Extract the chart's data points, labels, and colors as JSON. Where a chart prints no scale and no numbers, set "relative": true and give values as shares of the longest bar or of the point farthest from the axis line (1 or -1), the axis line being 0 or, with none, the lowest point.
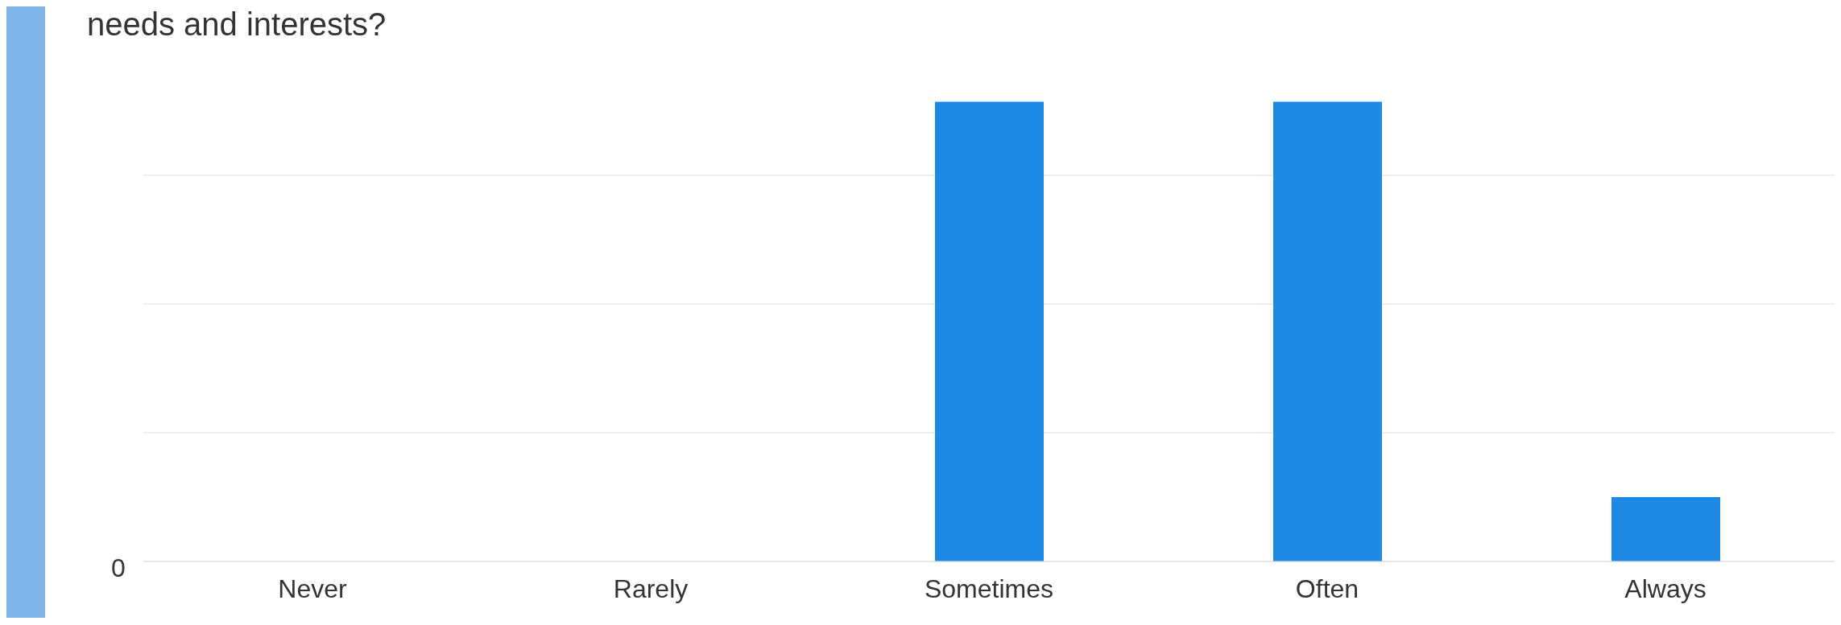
{
  "chart_data": {
    "type": "bar",
    "title": "needs and interests?",
    "categories": [
      "Never",
      "Rarely",
      "Sometimes",
      "Often",
      "Always"
    ],
    "values": [
      0,
      0,
      1,
      1,
      0.14
    ],
    "color": "#1e88e5",
    "relative": true,
    "annotations": [
      "0"
    ],
    "grid": "y"
  }
}
